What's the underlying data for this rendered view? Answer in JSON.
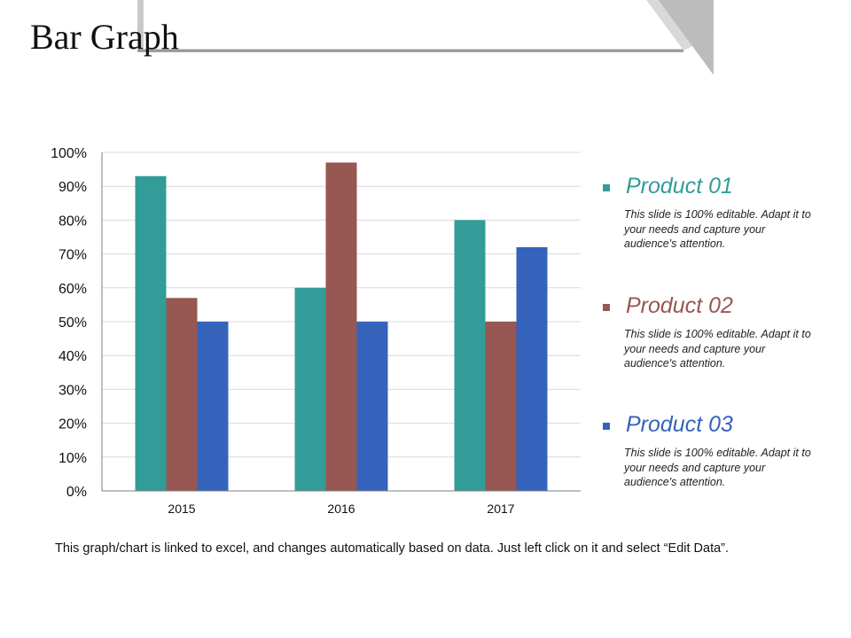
{
  "title": "Bar Graph",
  "colors": {
    "product1": "#329c98",
    "product2": "#975752",
    "product3": "#3563bc",
    "header_stripe": "#9a9a9a",
    "corner_light": "#d9d9d9",
    "corner_dark": "#bcbcbc"
  },
  "chart_data": {
    "type": "bar",
    "categories": [
      "2015",
      "2016",
      "2017"
    ],
    "series": [
      {
        "name": "Product 01",
        "values": [
          93,
          60,
          80
        ]
      },
      {
        "name": "Product 02",
        "values": [
          57,
          97,
          50
        ]
      },
      {
        "name": "Product 03",
        "values": [
          50,
          50,
          72
        ]
      }
    ],
    "ylim": [
      0,
      100
    ],
    "yticks": [
      0,
      10,
      20,
      30,
      40,
      50,
      60,
      70,
      80,
      90,
      100
    ],
    "ytick_suffix": "%",
    "grid": true,
    "legend_position": "right"
  },
  "legend": [
    {
      "title": "Product 01",
      "desc": "This slide is 100% editable. Adapt it to your needs and capture your audience's attention."
    },
    {
      "title": "Product 02",
      "desc": "This slide is 100% editable. Adapt it to your needs and capture your audience's attention."
    },
    {
      "title": "Product 03",
      "desc": "This slide is 100% editable. Adapt it to your needs and capture your audience's attention."
    }
  ],
  "footnote": "This graph/chart is linked to excel, and changes automatically based on data. Just left click on it and select “Edit Data”."
}
